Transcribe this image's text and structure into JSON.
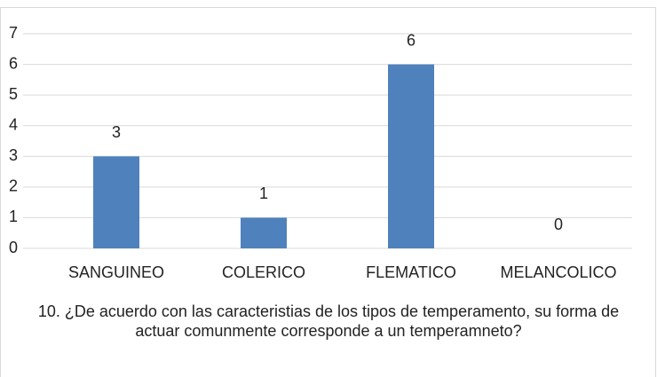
{
  "chart_data": {
    "type": "bar",
    "title": "10. ¿De acuerdo con las caracteristias de los tipos de temperamento, su forma de actuar comunmente corresponde a un temperamneto?",
    "categories": [
      "SANGUINEO",
      "COLERICO",
      "FLEMATICO",
      "MELANCOLICO"
    ],
    "values": [
      3,
      1,
      6,
      0
    ],
    "color": "#4f81bd",
    "ylim": [
      0,
      7
    ],
    "yticks": [
      0,
      1,
      2,
      3,
      4,
      5,
      6,
      7
    ],
    "grid": true
  }
}
